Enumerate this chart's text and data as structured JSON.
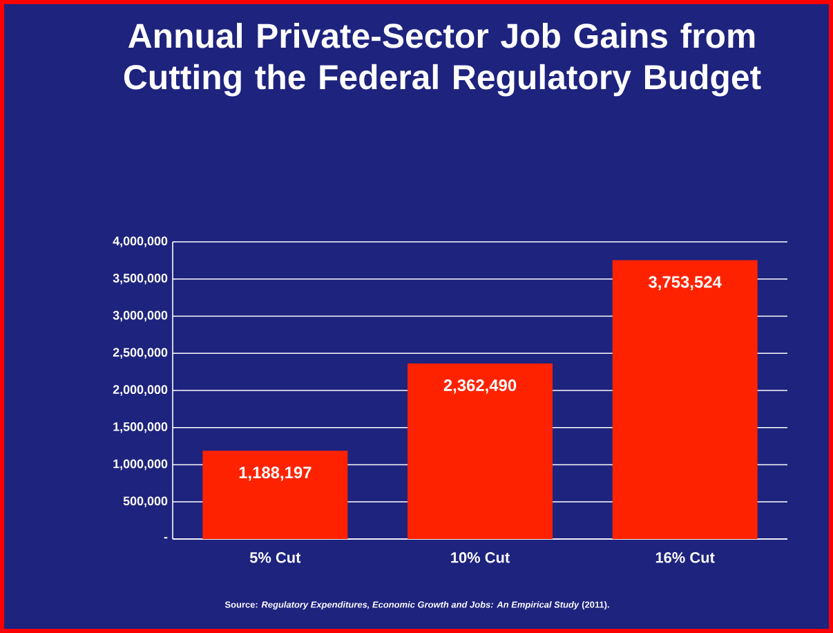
{
  "chart_data": {
    "type": "bar",
    "title": "Annual Private-Sector Job Gains from Cutting the Federal Regulatory Budget",
    "categories": [
      "5% Cut",
      "10% Cut",
      "16% Cut"
    ],
    "values": [
      1188197,
      2362490,
      3753524
    ],
    "value_labels": [
      "1,188,197",
      "2,362,490",
      "3,753,524"
    ],
    "color": "#ff2200",
    "ylim": [
      0,
      4000000
    ],
    "yticks": [
      {
        "value": 0,
        "label": "-"
      },
      {
        "value": 500000,
        "label": "500,000"
      },
      {
        "value": 1000000,
        "label": "1,000,000"
      },
      {
        "value": 1500000,
        "label": "1,500,000"
      },
      {
        "value": 2000000,
        "label": "2,000,000"
      },
      {
        "value": 2500000,
        "label": "2,500,000"
      },
      {
        "value": 3000000,
        "label": "3,000,000"
      },
      {
        "value": 3500000,
        "label": "3,500,000"
      },
      {
        "value": 4000000,
        "label": "4,000,000"
      }
    ],
    "grid": "y",
    "annotations": [
      "Source: *Regulatory Expenditures,  Economic Growth and Jobs: An Empirical Study* (2011)."
    ]
  }
}
